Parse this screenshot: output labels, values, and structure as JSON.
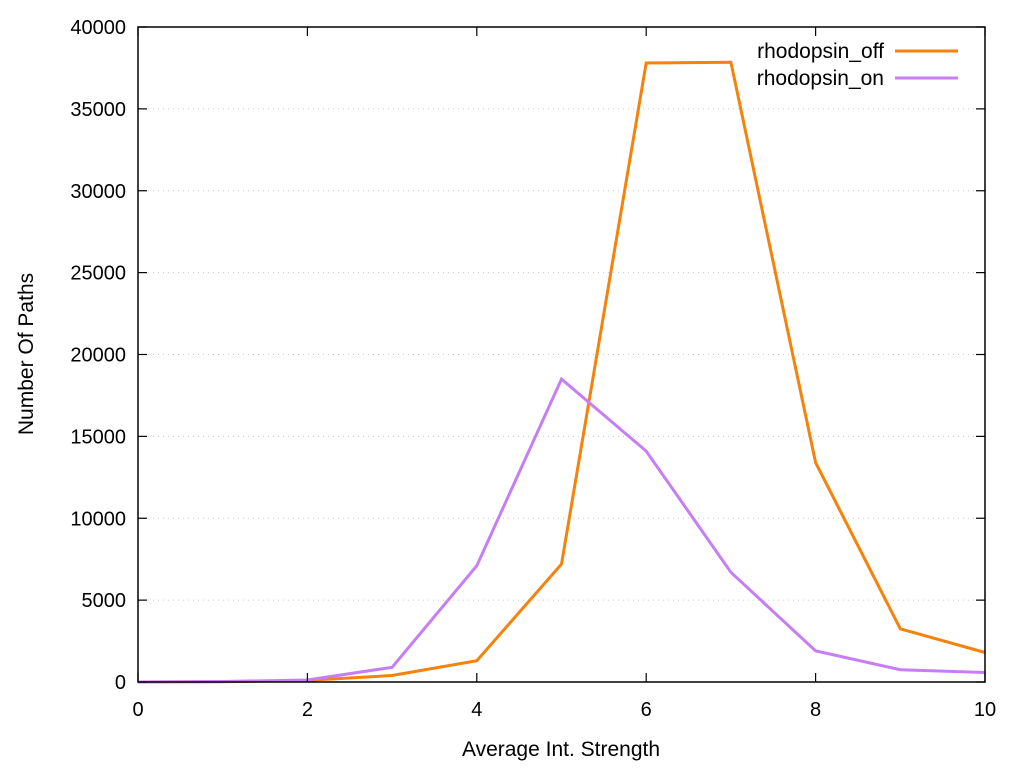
{
  "chart_data": {
    "type": "line",
    "title": "",
    "xlabel": "Average Int. Strength",
    "ylabel": "Number Of Paths",
    "xlim": [
      0,
      10
    ],
    "ylim": [
      0,
      40000
    ],
    "xticks": [
      0,
      2,
      4,
      6,
      8,
      10
    ],
    "yticks": [
      0,
      5000,
      10000,
      15000,
      20000,
      25000,
      30000,
      35000,
      40000
    ],
    "grid": "horizontal dotted",
    "legend_position": "top-right",
    "x": [
      0,
      1,
      2,
      3,
      4,
      5,
      6,
      7,
      8,
      9,
      10
    ],
    "series": [
      {
        "name": "rhodopsin_off",
        "color": "#f5820a",
        "values": [
          0,
          20,
          100,
          400,
          1300,
          7200,
          37800,
          37850,
          13400,
          3250,
          1800
        ]
      },
      {
        "name": "rhodopsin_on",
        "color": "#c77ef5",
        "values": [
          0,
          30,
          120,
          900,
          7100,
          18500,
          14100,
          6700,
          1900,
          750,
          580
        ]
      }
    ]
  }
}
